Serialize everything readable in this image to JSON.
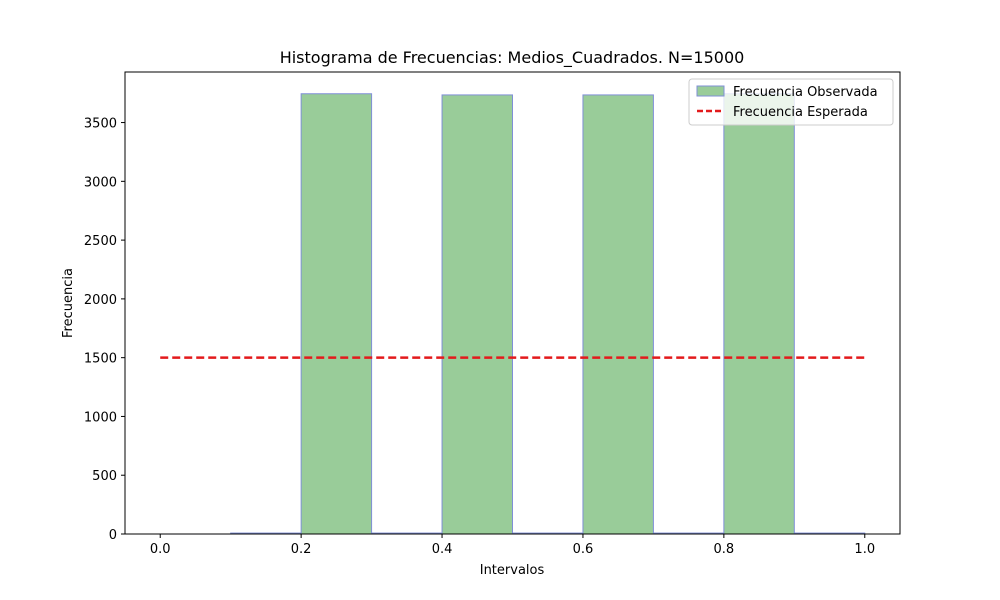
{
  "chart_data": {
    "type": "bar",
    "title": "Histograma de Frecuencias: Medios_Cuadrados. N=15000",
    "xlabel": "Intervalos",
    "ylabel": "Frecuencia",
    "xlim": [
      -0.05,
      1.05
    ],
    "ylim": [
      0,
      3930
    ],
    "x_ticks": [
      0.0,
      0.2,
      0.4,
      0.6,
      0.8,
      1.0
    ],
    "x_tick_labels": [
      "0.0",
      "0.2",
      "0.4",
      "0.6",
      "0.8",
      "1.0"
    ],
    "y_ticks": [
      0,
      500,
      1000,
      1500,
      2000,
      2500,
      3000,
      3500
    ],
    "y_tick_labels": [
      "0",
      "500",
      "1000",
      "1500",
      "2000",
      "2500",
      "3000",
      "3500"
    ],
    "bin_edges": [
      0.0,
      0.1,
      0.2,
      0.3,
      0.4,
      0.5,
      0.6,
      0.7,
      0.8,
      0.9,
      1.0
    ],
    "series": [
      {
        "name": "Frecuencia Observada",
        "kind": "histogram",
        "values": [
          0,
          8,
          3745,
          8,
          3735,
          8,
          3735,
          8,
          3745,
          8
        ]
      },
      {
        "name": "Frecuencia Esperada",
        "kind": "dashed-line",
        "x": [
          0.0,
          1.0
        ],
        "y": [
          1500,
          1500
        ]
      }
    ],
    "legend": [
      "Frecuencia Observada",
      "Frecuencia Esperada"
    ],
    "legend_position": "top-right",
    "grid": false,
    "colors": {
      "bar_fill": "#99cc99",
      "bar_edge": "#7f8fd6",
      "expected_line": "#e31a1c"
    }
  }
}
